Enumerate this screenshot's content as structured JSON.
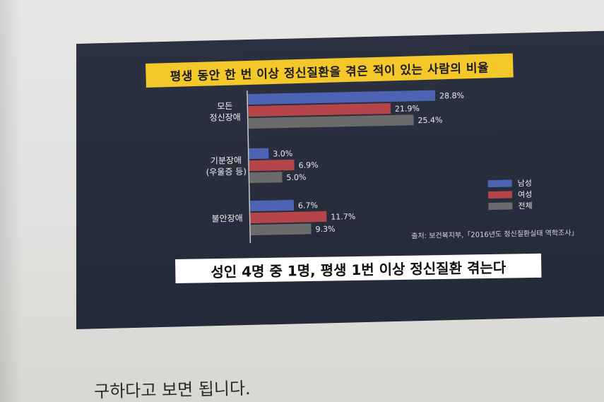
{
  "chart_data": {
    "type": "bar",
    "orientation": "horizontal",
    "title": "평생 동안 한 번 이상 정신질환을 겪은 적이 있는 사람의 비율",
    "categories": [
      {
        "label_lines": [
          "모든",
          "정신장애"
        ]
      },
      {
        "label_lines": [
          "기분장애",
          "(우울증 등)"
        ]
      },
      {
        "label_lines": [
          "불안장애"
        ]
      }
    ],
    "series": [
      {
        "name": "남성",
        "color": "#4d64b4",
        "values": [
          28.8,
          3.0,
          6.7
        ],
        "labels": [
          "28.8%",
          "3.0%",
          "6.7%"
        ]
      },
      {
        "name": "여성",
        "color": "#b64549",
        "values": [
          21.9,
          6.9,
          11.7
        ],
        "labels": [
          "21.9%",
          "6.9%",
          "11.7%"
        ]
      },
      {
        "name": "전체",
        "color": "#6b6b6b",
        "values": [
          25.4,
          5.0,
          9.3
        ],
        "labels": [
          "25.4%",
          "5.0%",
          "9.3%"
        ]
      }
    ],
    "legend_position": "right",
    "grid": false,
    "source": "출처: 보건복지부,「2016년도 정신질환실태 역학조사」"
  },
  "caption": "성인 4명 중 1명, 평생 1번 이상 정신질환 겪는다",
  "book_text": "구하다고 보면 됩니다."
}
